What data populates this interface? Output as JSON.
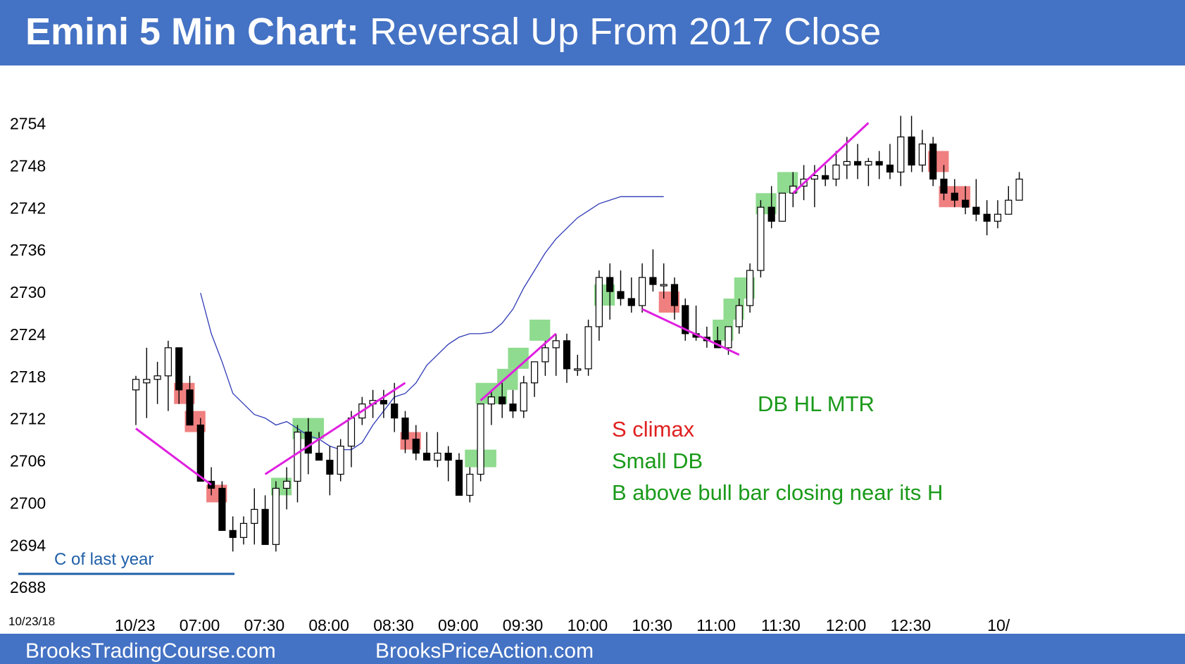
{
  "header": {
    "title_bold": "Emini 5 Min Chart:",
    "title_rest": " Reversal Up From 2017 Close",
    "background": "#4472c4"
  },
  "footer": {
    "left": "BrooksTradingCourse.com",
    "right": "BrooksPriceAction.com"
  },
  "chart_data": {
    "type": "candlestick",
    "date_label": "10/23/18",
    "y_ticks": [
      2754,
      2748,
      2742,
      2736,
      2730,
      2724,
      2718,
      2712,
      2706,
      2700,
      2694,
      2688
    ],
    "ylim": [
      2685,
      2758
    ],
    "x_tick_labels": [
      {
        "label": "10/23",
        "bar": 0
      },
      {
        "label": "07:00",
        "bar": 6
      },
      {
        "label": "07:30",
        "bar": 12
      },
      {
        "label": "08:00",
        "bar": 18
      },
      {
        "label": "08:30",
        "bar": 24
      },
      {
        "label": "09:00",
        "bar": 30
      },
      {
        "label": "09:30",
        "bar": 36
      },
      {
        "label": "10:00",
        "bar": 42
      },
      {
        "label": "10:30",
        "bar": 48
      },
      {
        "label": "11:00",
        "bar": 54
      },
      {
        "label": "11:30",
        "bar": 60
      },
      {
        "label": "12:00",
        "bar": 66
      },
      {
        "label": "12:30",
        "bar": 72
      },
      {
        "label": "10/",
        "bar": 81
      }
    ],
    "candles": [
      [
        2716,
        2718,
        2711,
        2717.5
      ],
      [
        2717,
        2722,
        2712,
        2717.5
      ],
      [
        2717.5,
        2720,
        2714,
        2718
      ],
      [
        2718,
        2723,
        2713,
        2722
      ],
      [
        2722,
        2722,
        2714,
        2716
      ],
      [
        2716,
        2718,
        2711,
        2711
      ],
      [
        2711,
        2712,
        2703,
        2703
      ],
      [
        2703,
        2705,
        2701,
        2702
      ],
      [
        2702,
        2703,
        2696,
        2696
      ],
      [
        2696,
        2698,
        2693,
        2695
      ],
      [
        2695,
        2698,
        2694,
        2697
      ],
      [
        2697,
        2702,
        2694,
        2699
      ],
      [
        2699,
        2701,
        2694,
        2694
      ],
      [
        2694,
        2703,
        2693,
        2702
      ],
      [
        2702,
        2705,
        2699,
        2703
      ],
      [
        2703,
        2711,
        2700,
        2710
      ],
      [
        2710,
        2712,
        2704,
        2707
      ],
      [
        2707,
        2710,
        2706,
        2706
      ],
      [
        2706,
        2708,
        2701,
        2704
      ],
      [
        2704,
        2709,
        2703,
        2708
      ],
      [
        2708,
        2713,
        2705,
        2712
      ],
      [
        2712,
        2715,
        2711,
        2714
      ],
      [
        2714,
        2716,
        2712,
        2714.5
      ],
      [
        2714.5,
        2716,
        2712,
        2714
      ],
      [
        2714,
        2717,
        2710,
        2712
      ],
      [
        2712,
        2713,
        2707,
        2709
      ],
      [
        2709,
        2711,
        2706,
        2707
      ],
      [
        2707,
        2710,
        2706,
        2706
      ],
      [
        2706,
        2710,
        2705,
        2707
      ],
      [
        2707,
        2708,
        2703,
        2706
      ],
      [
        2706,
        2707,
        2701,
        2701
      ],
      [
        2701,
        2705,
        2700,
        2704
      ],
      [
        2704,
        2714,
        2703,
        2714
      ],
      [
        2714,
        2716,
        2711,
        2715
      ],
      [
        2715,
        2717,
        2712,
        2714
      ],
      [
        2714,
        2716,
        2712,
        2713
      ],
      [
        2713,
        2718,
        2712,
        2717
      ],
      [
        2717,
        2720,
        2715,
        2720
      ],
      [
        2720,
        2723,
        2718,
        2722
      ],
      [
        2722,
        2724,
        2718,
        2723
      ],
      [
        2723,
        2724,
        2717,
        2719
      ],
      [
        2719,
        2721,
        2718,
        2719
      ],
      [
        2719,
        2726,
        2718,
        2725
      ],
      [
        2725,
        2733,
        2723,
        2732
      ],
      [
        2732,
        2734,
        2726,
        2730
      ],
      [
        2730,
        2733,
        2728,
        2729
      ],
      [
        2729,
        2732,
        2727,
        2728
      ],
      [
        2728,
        2734,
        2727,
        2732
      ],
      [
        2732,
        2736,
        2730,
        2731
      ],
      [
        2731,
        2734,
        2729,
        2731
      ],
      [
        2731,
        2732,
        2726,
        2728
      ],
      [
        2728,
        2729,
        2723,
        2724
      ],
      [
        2724,
        2728,
        2723,
        2723.5
      ],
      [
        2723.5,
        2725,
        2722,
        2723
      ],
      [
        2723,
        2725,
        2722,
        2722
      ],
      [
        2722,
        2725,
        2721,
        2725
      ],
      [
        2725,
        2729,
        2724,
        2728
      ],
      [
        2728,
        2734,
        2727,
        2733
      ],
      [
        2733,
        2743,
        2732,
        2742
      ],
      [
        2742,
        2745,
        2739,
        2740
      ],
      [
        2740,
        2744,
        2740,
        2744
      ],
      [
        2744,
        2747,
        2742,
        2745
      ],
      [
        2745,
        2748,
        2743,
        2746
      ],
      [
        2746,
        2748,
        2742,
        2746.5
      ],
      [
        2746.5,
        2748,
        2745,
        2746
      ],
      [
        2746,
        2750,
        2745,
        2748
      ],
      [
        2748,
        2752,
        2746,
        2748.5
      ],
      [
        2748.5,
        2751,
        2746,
        2748
      ],
      [
        2748,
        2749,
        2745,
        2748.5
      ],
      [
        2748.5,
        2750,
        2746,
        2748
      ],
      [
        2748,
        2751,
        2746,
        2747
      ],
      [
        2747,
        2755,
        2745,
        2752
      ],
      [
        2752,
        2755,
        2747,
        2748
      ],
      [
        2748,
        2753,
        2747,
        2751
      ],
      [
        2751,
        2752,
        2745,
        2746
      ],
      [
        2746,
        2748,
        2743,
        2744
      ],
      [
        2744,
        2746,
        2742,
        2743
      ],
      [
        2743,
        2745,
        2741,
        2742
      ],
      [
        2742,
        2746,
        2740,
        2741
      ],
      [
        2741,
        2743,
        2738,
        2740
      ],
      [
        2740,
        2743,
        2739,
        2741
      ],
      [
        2741,
        2745,
        2741,
        2743
      ],
      [
        2743,
        2747,
        2743,
        2746
      ]
    ],
    "ema": [
      [
        12,
        2729.8
      ],
      [
        14,
        2724
      ],
      [
        16,
        2720
      ],
      [
        18,
        2715.5
      ],
      [
        20,
        2714
      ],
      [
        22,
        2712.5
      ],
      [
        24,
        2712
      ],
      [
        26,
        2711
      ],
      [
        28,
        2711.5
      ],
      [
        30,
        2710.5
      ],
      [
        32,
        2709.5
      ],
      [
        34,
        2709
      ],
      [
        36,
        2708
      ],
      [
        38,
        2707.5
      ],
      [
        40,
        2707.5
      ],
      [
        42,
        2708.5
      ],
      [
        44,
        2711
      ],
      [
        46,
        2713
      ],
      [
        48,
        2715
      ],
      [
        50,
        2715.5
      ],
      [
        52,
        2717
      ],
      [
        54,
        2719.5
      ],
      [
        56,
        2721
      ],
      [
        58,
        2722.5
      ],
      [
        60,
        2723.5
      ],
      [
        62,
        2724
      ],
      [
        64,
        2724
      ],
      [
        66,
        2724.2
      ],
      [
        68,
        2725.5
      ],
      [
        70,
        2727.5
      ],
      [
        72,
        2730.5
      ],
      [
        74,
        2733
      ],
      [
        76,
        2735.5
      ],
      [
        78,
        2737.5
      ],
      [
        80,
        2739
      ],
      [
        82,
        2740.5
      ],
      [
        84,
        2741.5
      ],
      [
        86,
        2742.5
      ],
      [
        88,
        2743
      ],
      [
        90,
        2743.5
      ],
      [
        92,
        2743.5
      ],
      [
        94,
        2743.5
      ],
      [
        96,
        2743.5
      ],
      [
        98,
        2743.5
      ]
    ],
    "ema_color": "#2f3ab5",
    "buy_boxes": [
      [
        13,
        14,
        2701,
        2703.5
      ],
      [
        15,
        17,
        2709,
        2712
      ],
      [
        31,
        33,
        2705,
        2707.5
      ],
      [
        32,
        34,
        2714,
        2717
      ],
      [
        34,
        35,
        2716,
        2719
      ],
      [
        35,
        36,
        2719,
        2722
      ],
      [
        37,
        38,
        2723,
        2726
      ],
      [
        43,
        44,
        2728,
        2731
      ],
      [
        54,
        55,
        2723,
        2726
      ],
      [
        55,
        56,
        2726,
        2729
      ],
      [
        56,
        57,
        2729,
        2732
      ],
      [
        58,
        59,
        2741,
        2744
      ],
      [
        60,
        61,
        2744,
        2747
      ]
    ],
    "sell_boxes": [
      [
        4,
        5,
        2714,
        2717
      ],
      [
        5,
        6,
        2710,
        2713
      ],
      [
        7,
        8,
        2700,
        2702.5
      ],
      [
        25,
        26,
        2707.5,
        2710
      ],
      [
        49,
        50,
        2727,
        2730
      ],
      [
        74,
        75,
        2747,
        2750
      ],
      [
        75,
        77,
        2742,
        2745
      ]
    ],
    "buy_box_color": "#8fdb8f",
    "sell_box_color": "#f08080",
    "trend_lines": [
      [
        [
          0,
          2710.5
        ],
        [
          7,
          2702.5
        ]
      ],
      [
        [
          12,
          2704
        ],
        [
          25,
          2717
        ]
      ],
      [
        [
          32,
          2714.5
        ],
        [
          39,
          2724
        ]
      ],
      [
        [
          47,
          2727.5
        ],
        [
          56,
          2721
        ]
      ],
      [
        [
          61,
          2744
        ],
        [
          68,
          2754
        ]
      ]
    ],
    "trend_line_color": "#e020e0",
    "prior_close": {
      "value": 2691.5,
      "label": "C of last year",
      "color": "#1f5fa8"
    },
    "annotations": [
      {
        "text": "DB HL MTR",
        "color": "#1a9a1a"
      },
      {
        "text": "S climax",
        "color": "#e02020"
      },
      {
        "text": "Small DB",
        "color": "#1a9a1a"
      },
      {
        "text": "B above bull bar closing near its H",
        "color": "#1a9a1a"
      }
    ]
  }
}
